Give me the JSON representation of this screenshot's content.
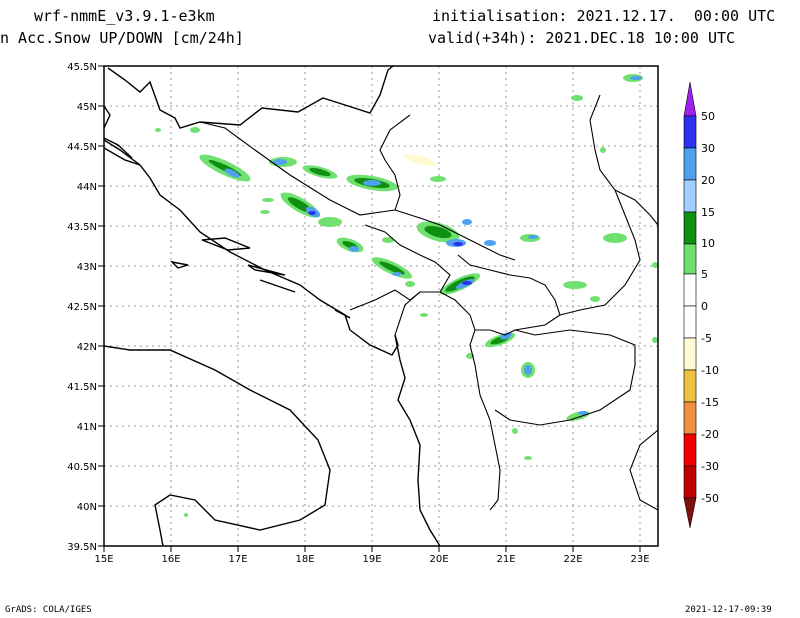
{
  "header": {
    "model": "wrf-nmmE_v3.9.1-e3km",
    "field": "n Acc.Snow UP/DOWN [cm/24h]",
    "init": "initialisation: 2021.12.17.  00:00 UTC",
    "valid": "valid(+34h): 2021.DEC.18 10:00 UTC"
  },
  "map": {
    "lat_labels": [
      "45.5N",
      "45N",
      "44.5N",
      "44N",
      "43.5N",
      "43N",
      "42.5N",
      "42N",
      "41.5N",
      "41N",
      "40.5N",
      "40N",
      "39.5N"
    ],
    "lon_labels": [
      "15E",
      "16E",
      "17E",
      "18E",
      "19E",
      "20E",
      "21E",
      "22E",
      "23E"
    ]
  },
  "colorbar": {
    "levels": [
      "50",
      "30",
      "20",
      "15",
      "10",
      "5",
      "0",
      "-5",
      "-10",
      "-15",
      "-20",
      "-30",
      "-50"
    ],
    "colors": {
      "top_tri": "#a020f0",
      "v30_50": "#3030f0",
      "v20_30": "#50a0f0",
      "v15_20": "#a0d0ff",
      "v10_15": "#109010",
      "v5_10": "#70e070",
      "v0_5": "#ffffff",
      "v_5_0": "#ffffff",
      "v_10_5": "#fffad0",
      "v_15_10": "#f0c040",
      "v_20_15": "#f09040",
      "v_30_20": "#f00000",
      "v_50_30": "#c00000",
      "bottom_tri": "#801010"
    }
  },
  "footer": {
    "left": "GrADS: COLA/IGES",
    "right": "2021-12-17-09:39"
  }
}
